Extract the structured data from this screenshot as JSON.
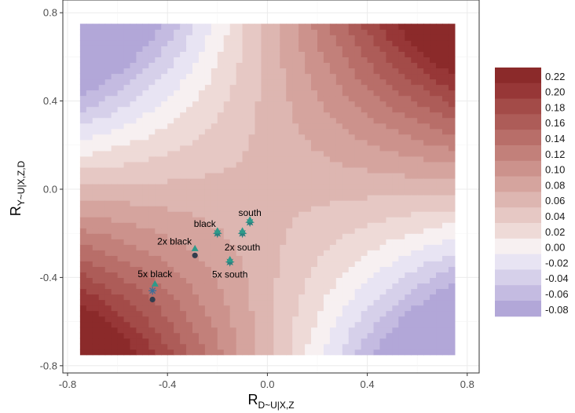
{
  "chart_data": {
    "type": "contour",
    "x_axis": {
      "label_main": "R",
      "label_sub": "D~U|X,Z",
      "range": [
        -0.75,
        0.75
      ],
      "ticks": [
        -0.8,
        -0.4,
        0.0,
        0.4,
        0.8
      ],
      "tick_labels": [
        "-0.8",
        "-0.4",
        "0.0",
        "0.4",
        "0.8"
      ]
    },
    "y_axis": {
      "label_main": "R",
      "label_sub": "Y~U|X,Z,D",
      "range": [
        -0.75,
        0.75
      ],
      "ticks": [
        -0.8,
        -0.4,
        0.0,
        0.4,
        0.8
      ],
      "tick_labels": [
        "-0.8",
        "-0.4",
        "0.0",
        "0.4",
        "0.8"
      ]
    },
    "grid": true,
    "surface": {
      "function": "0.056 + 0.4 * x * y",
      "resolution": 60
    },
    "color_scale": {
      "position": "right",
      "breaks": [
        0.22,
        0.2,
        0.18,
        0.16,
        0.14,
        0.12,
        0.1,
        0.08,
        0.06,
        0.04,
        0.02,
        0.0,
        -0.02,
        -0.04,
        -0.06,
        -0.08
      ],
      "labels": [
        "0.22",
        "0.20",
        "0.18",
        "0.16",
        "0.14",
        "0.12",
        "0.10",
        "0.08",
        "0.06",
        "0.04",
        "0.02",
        "0.00",
        "-0.02",
        "-0.04",
        "-0.06",
        "-0.08"
      ],
      "colors": [
        "#8b2a2a",
        "#973737",
        "#a34b48",
        "#ad5c58",
        "#b86e69",
        "#c2807a",
        "#cc928c",
        "#d5a49e",
        "#ddb6b1",
        "#e6c8c4",
        "#eedad7",
        "#f7f0f1",
        "#e8e4f3",
        "#d6d0ea",
        "#c4bbe1",
        "#b2a7d8"
      ]
    },
    "points": [
      {
        "label": "black",
        "marker": "star",
        "x": -0.2,
        "y": -0.2,
        "color": "#2a7f7f"
      },
      {
        "label": "black",
        "marker": "triangle",
        "x": -0.2,
        "y": -0.19,
        "color": "#2e9a8a"
      },
      {
        "label": "south",
        "marker": "star",
        "x": -0.07,
        "y": -0.15,
        "color": "#2a7f7f"
      },
      {
        "label": "south",
        "marker": "triangle",
        "x": -0.07,
        "y": -0.14,
        "color": "#2e9a8a"
      },
      {
        "label": "2x black",
        "marker": "dot",
        "x": -0.29,
        "y": -0.3,
        "color": "#333d4d"
      },
      {
        "label": "2x black",
        "marker": "triangle",
        "x": -0.29,
        "y": -0.27,
        "color": "#2e9a8a"
      },
      {
        "label": "2x south",
        "marker": "star",
        "x": -0.1,
        "y": -0.2,
        "color": "#2a7f7f"
      },
      {
        "label": "2x south",
        "marker": "triangle",
        "x": -0.1,
        "y": -0.19,
        "color": "#2e9a8a"
      },
      {
        "label": "5x south",
        "marker": "star",
        "x": -0.15,
        "y": -0.33,
        "color": "#2a7f7f"
      },
      {
        "label": "5x south",
        "marker": "triangle",
        "x": -0.15,
        "y": -0.32,
        "color": "#2e9a8a"
      },
      {
        "label": "5x black",
        "marker": "triangle",
        "x": -0.45,
        "y": -0.43,
        "color": "#2e9a8a"
      },
      {
        "label": "5x black",
        "marker": "asterisk",
        "x": -0.46,
        "y": -0.46,
        "color": "#3a6e9a"
      },
      {
        "label": "5x black",
        "marker": "dot",
        "x": -0.46,
        "y": -0.5,
        "color": "#333d4d"
      }
    ],
    "point_labels": [
      {
        "text": "black",
        "x": -0.2,
        "y": -0.2,
        "anchor": "end"
      },
      {
        "text": "south",
        "x": -0.07,
        "y": -0.15,
        "anchor": "middle"
      },
      {
        "text": "2x black",
        "x": -0.29,
        "y": -0.28,
        "anchor": "end"
      },
      {
        "text": "2x south",
        "x": -0.1,
        "y": -0.21,
        "anchor": "middle"
      },
      {
        "text": "5x south",
        "x": -0.15,
        "y": -0.33,
        "anchor": "middle"
      },
      {
        "text": "5x black",
        "x": -0.45,
        "y": -0.43,
        "anchor": "middle"
      }
    ]
  }
}
